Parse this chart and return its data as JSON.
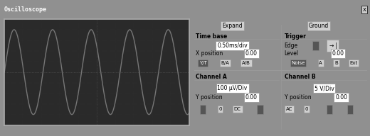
{
  "title": "Oscilloscope",
  "titlebar_bg": "#808080",
  "titlebar_fg": "white",
  "outer_bg": "#909090",
  "screen_bg": "#2a2a2a",
  "screen_border": "#aaaaaa",
  "wave_color": "#555555",
  "grid_color": "#555555",
  "panel_bg": "#b0b0b0",
  "freq_hz": 1000,
  "num_cycles": 4.8,
  "amplitude": 1.0,
  "label_fontsize": 5.5,
  "bold_fontsize": 5.5,
  "controls": {
    "time_base": "0.50ms/div",
    "x_position": "0.00",
    "channel_a": "100 μV/Div",
    "channel_b": "5 V/Div",
    "y_position_a": "0.00",
    "y_position_b": "0.00",
    "trigger_level": "0.00",
    "expand": "Expand",
    "ground": "Ground",
    "time_base_label": "Time base",
    "x_position_label": "X position",
    "trigger_label": "Trigger",
    "edge_label": "Edge",
    "level_label": "Level",
    "channel_a_label": "Channel A",
    "channel_b_label": "Channel B",
    "y_position_label": "Y position",
    "btn_yt": "Y/T",
    "btn_ba": "B/A",
    "btn_ab": "A/B",
    "btn_a": "A",
    "btn_b": "B",
    "btn_ext": "Ext",
    "btn_0a": "0",
    "btn_dc": "DC",
    "btn_ac": "AC",
    "btn_0b": "0"
  }
}
